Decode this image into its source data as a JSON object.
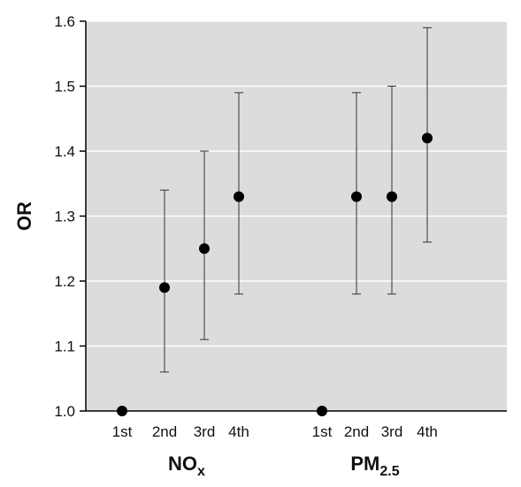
{
  "chart_data": {
    "type": "scatter",
    "title": "",
    "ylabel": "OR",
    "ylim": [
      1.0,
      1.6
    ],
    "yticks": [
      "1.0",
      "1.1",
      "1.2",
      "1.3",
      "1.4",
      "1.5",
      "1.6"
    ],
    "grid": true,
    "background_color": "#dcdcdc",
    "marker_color": "#000000",
    "errorbar_color": "#333333",
    "groups": [
      {
        "label_main": "NO",
        "label_sub": "x",
        "categories": [
          "1st",
          "2nd",
          "3rd",
          "4th"
        ],
        "or": [
          1.0,
          1.19,
          1.25,
          1.33
        ],
        "ci_lower": [
          null,
          1.06,
          1.11,
          1.18
        ],
        "ci_upper": [
          null,
          1.34,
          1.4,
          1.49
        ]
      },
      {
        "label_main": "PM",
        "label_sub": "2.5",
        "categories": [
          "1st",
          "2nd",
          "3rd",
          "4th"
        ],
        "or": [
          1.0,
          1.33,
          1.33,
          1.42
        ],
        "ci_lower": [
          null,
          1.18,
          1.18,
          1.26
        ],
        "ci_upper": [
          null,
          1.49,
          1.5,
          1.59
        ]
      }
    ]
  }
}
